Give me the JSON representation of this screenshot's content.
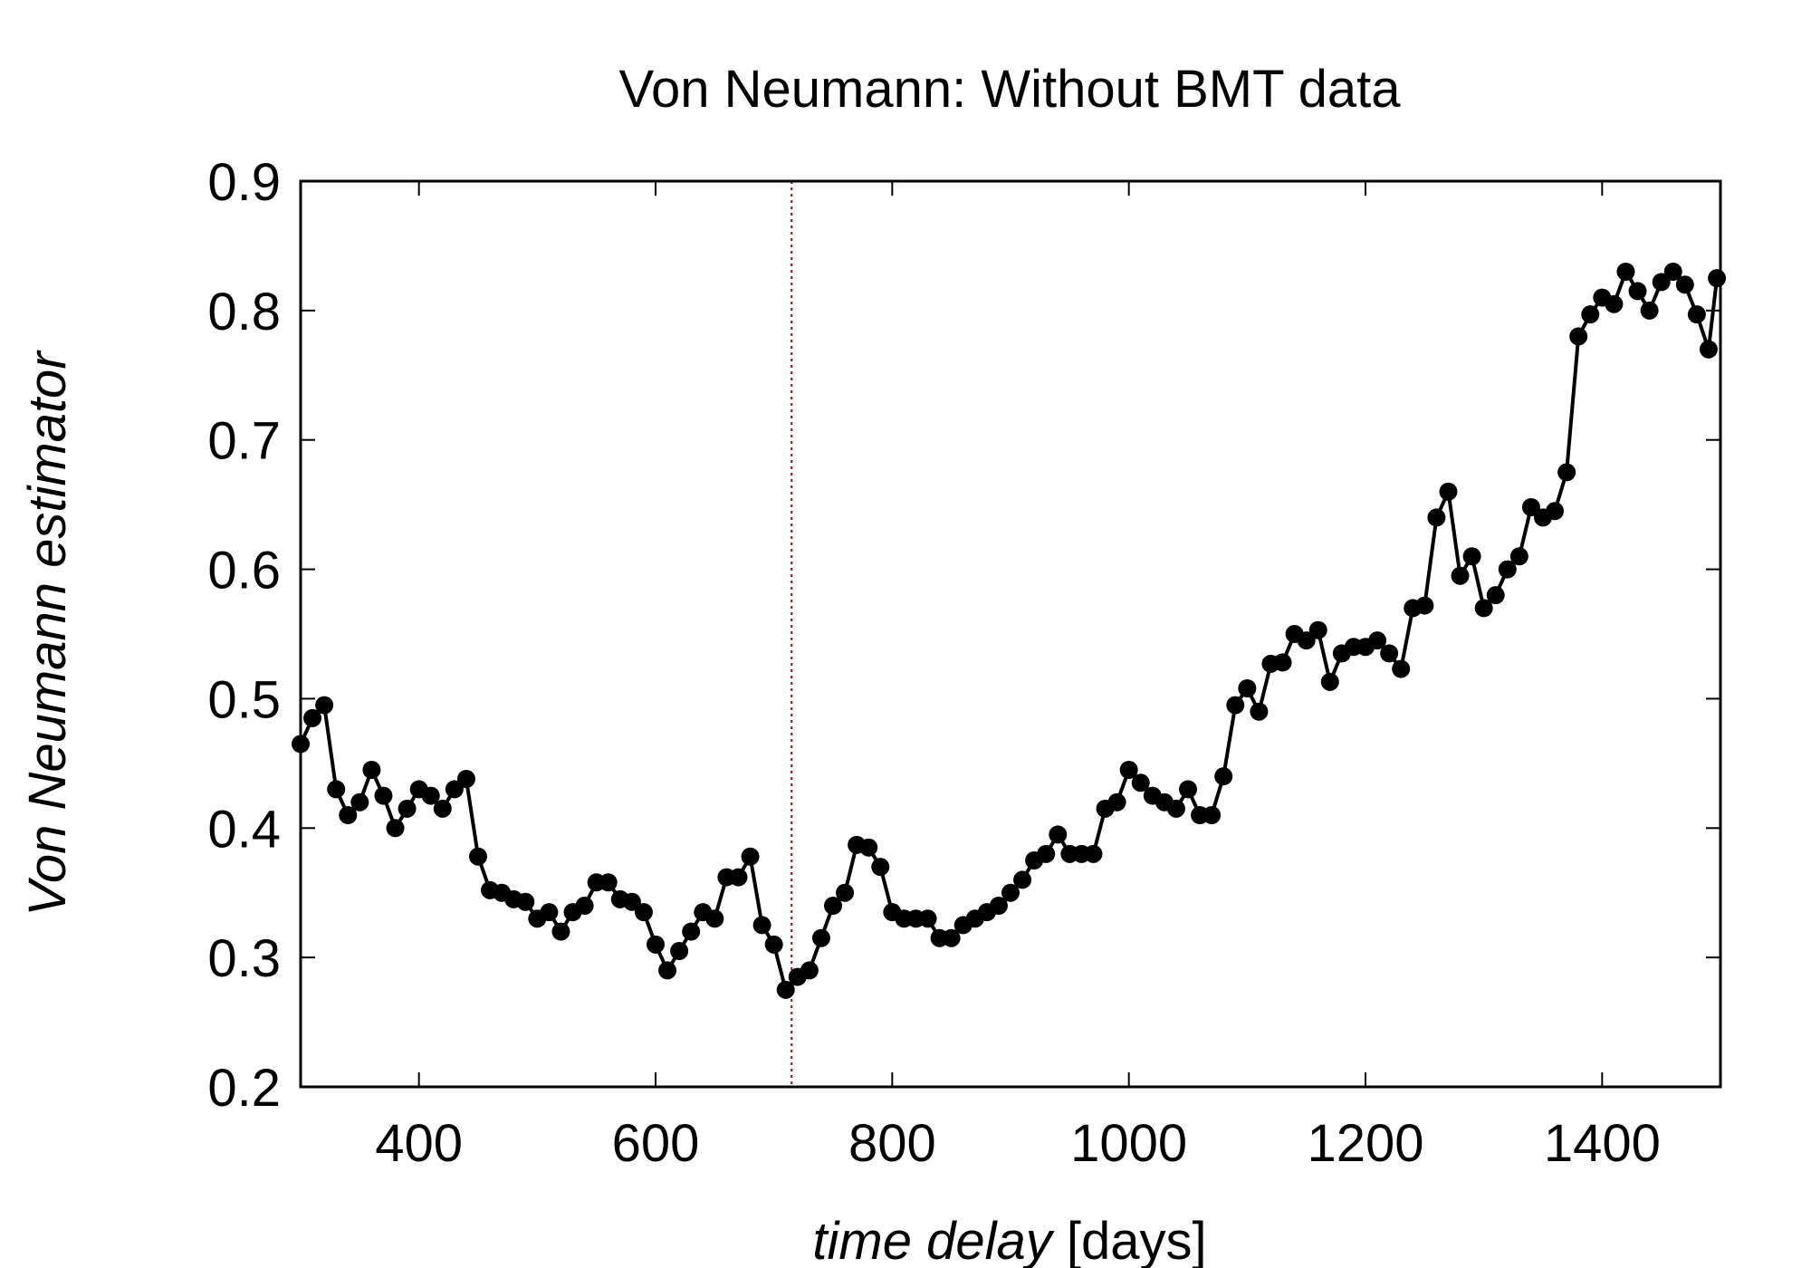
{
  "chart_data": {
    "type": "line",
    "title": "Von Neumann: Without BMT data",
    "xlabel": "time delay",
    "xlabel_unit": "[days]",
    "ylabel": "Von Neumann estimator",
    "x": [
      300,
      310,
      320,
      330,
      340,
      350,
      360,
      370,
      380,
      390,
      400,
      410,
      420,
      430,
      440,
      450,
      460,
      470,
      480,
      490,
      500,
      510,
      520,
      530,
      540,
      550,
      560,
      570,
      580,
      590,
      600,
      610,
      620,
      630,
      640,
      650,
      660,
      670,
      680,
      690,
      700,
      710,
      720,
      730,
      740,
      750,
      760,
      770,
      780,
      790,
      800,
      810,
      820,
      830,
      840,
      850,
      860,
      870,
      880,
      890,
      900,
      910,
      920,
      930,
      940,
      950,
      960,
      970,
      980,
      990,
      1000,
      1010,
      1020,
      1030,
      1040,
      1050,
      1060,
      1070,
      1080,
      1090,
      1100,
      1110,
      1120,
      1130,
      1140,
      1150,
      1160,
      1170,
      1180,
      1190,
      1200,
      1210,
      1220,
      1230,
      1240,
      1250,
      1260,
      1270,
      1280,
      1290,
      1300,
      1310,
      1320,
      1330,
      1340,
      1350,
      1360,
      1370,
      1380,
      1390,
      1400,
      1410,
      1420,
      1430,
      1440,
      1450,
      1460,
      1470,
      1480,
      1490,
      1497
    ],
    "values": [
      0.465,
      0.485,
      0.495,
      0.43,
      0.41,
      0.42,
      0.445,
      0.425,
      0.4,
      0.415,
      0.43,
      0.425,
      0.415,
      0.43,
      0.438,
      0.378,
      0.352,
      0.35,
      0.345,
      0.343,
      0.33,
      0.335,
      0.32,
      0.335,
      0.34,
      0.358,
      0.358,
      0.345,
      0.343,
      0.335,
      0.31,
      0.29,
      0.305,
      0.32,
      0.335,
      0.33,
      0.362,
      0.362,
      0.378,
      0.325,
      0.31,
      0.275,
      0.285,
      0.29,
      0.315,
      0.34,
      0.35,
      0.387,
      0.385,
      0.37,
      0.335,
      0.33,
      0.33,
      0.33,
      0.315,
      0.315,
      0.325,
      0.33,
      0.335,
      0.34,
      0.35,
      0.36,
      0.375,
      0.38,
      0.395,
      0.38,
      0.38,
      0.38,
      0.415,
      0.42,
      0.445,
      0.435,
      0.425,
      0.42,
      0.415,
      0.43,
      0.41,
      0.41,
      0.44,
      0.495,
      0.508,
      0.49,
      0.527,
      0.528,
      0.55,
      0.545,
      0.553,
      0.513,
      0.535,
      0.54,
      0.54,
      0.545,
      0.535,
      0.523,
      0.57,
      0.572,
      0.64,
      0.66,
      0.595,
      0.61,
      0.57,
      0.58,
      0.6,
      0.61,
      0.648,
      0.64,
      0.645,
      0.675,
      0.78,
      0.797,
      0.81,
      0.805,
      0.83,
      0.815,
      0.8,
      0.822,
      0.83,
      0.82,
      0.797,
      0.77,
      0.825
    ],
    "color": "#000000",
    "vline": {
      "x": 715,
      "color": "#c00000"
    },
    "xlim": [
      300,
      1500
    ],
    "xticks": [
      400,
      600,
      800,
      1000,
      1200,
      1400
    ],
    "ylim": [
      0.2,
      0.9
    ],
    "yticks": [
      0.2,
      0.3,
      0.4,
      0.5,
      0.6,
      0.7,
      0.8,
      0.9
    ]
  }
}
